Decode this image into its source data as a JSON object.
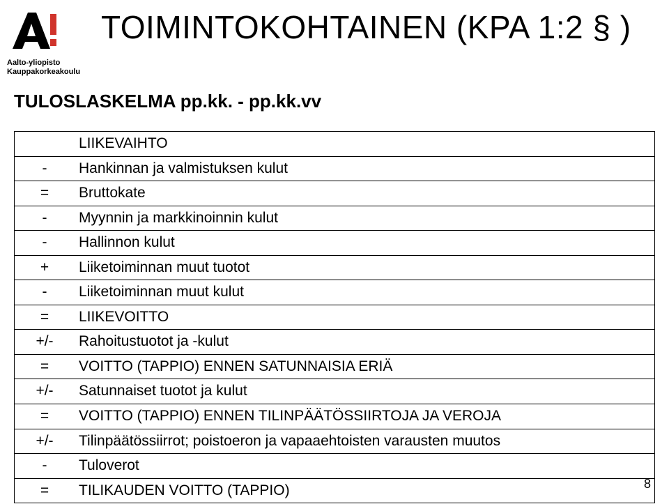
{
  "logo": {
    "line1": "Aalto-yliopisto",
    "line2": "Kauppakorkeakoulu",
    "mark_color": "#000000",
    "accent_color": "#d0342c"
  },
  "title": "TOIMINTOKOHTAINEN (KPA 1:2 § )",
  "subtitle": "TULOSLASKELMA  pp.kk. - pp.kk.vv",
  "page_number": "8",
  "rows": [
    {
      "sign": "",
      "desc": "LIIKEVAIHTO"
    },
    {
      "sign": "-",
      "desc": "Hankinnan ja valmistuksen kulut"
    },
    {
      "sign": "=",
      "desc": "Bruttokate"
    },
    {
      "sign": "-",
      "desc": "Myynnin ja markkinoinnin kulut"
    },
    {
      "sign": "-",
      "desc": "Hallinnon kulut"
    },
    {
      "sign": "+",
      "desc": "Liiketoiminnan muut tuotot"
    },
    {
      "sign": "-",
      "desc": "Liiketoiminnan muut kulut"
    },
    {
      "sign": "=",
      "desc": "LIIKEVOITTO"
    },
    {
      "sign": "+/-",
      "desc": "Rahoitustuotot ja -kulut"
    },
    {
      "sign": "=",
      "desc": "VOITTO (TAPPIO) ENNEN SATUNNAISIA ERIÄ"
    },
    {
      "sign": "+/-",
      "desc": "Satunnaiset tuotot ja kulut"
    },
    {
      "sign": "=",
      "desc": "VOITTO (TAPPIO) ENNEN TILINPÄÄTÖSSIIRTOJA JA VEROJA"
    },
    {
      "sign": "+/-",
      "desc": "Tilinpäätössiirrot; poistoeron ja vapaaehtoisten varausten muutos"
    },
    {
      "sign": "-",
      "desc": "Tuloverot"
    },
    {
      "sign": "=",
      "desc": "TILIKAUDEN VOITTO (TAPPIO)"
    }
  ],
  "table_style": {
    "border_color": "#000000",
    "font_size": 21,
    "sign_col_width": 86,
    "row_count": 15,
    "container_width": 920
  }
}
